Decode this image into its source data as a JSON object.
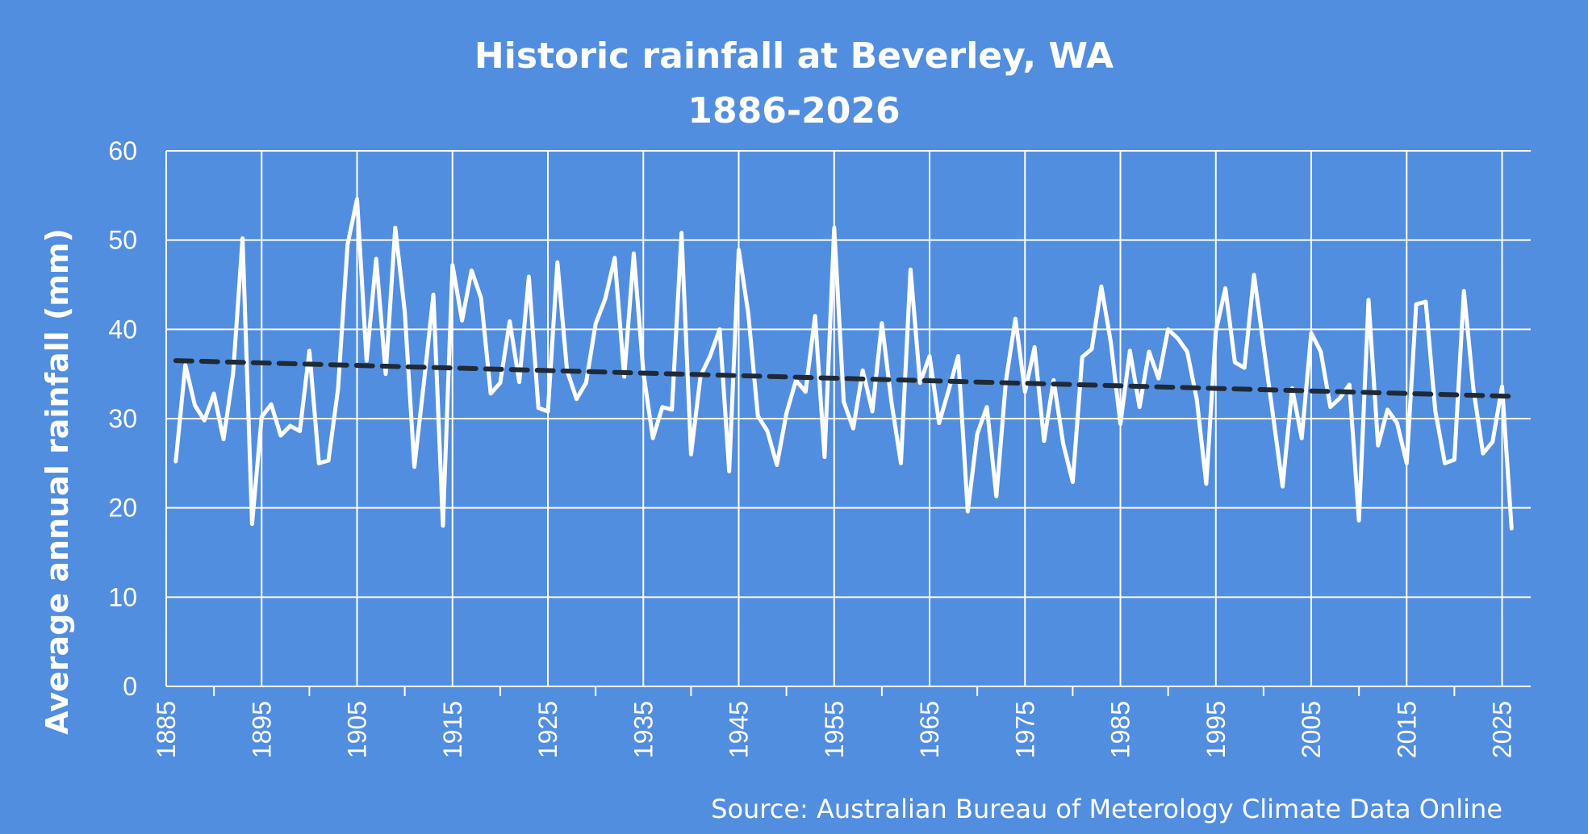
{
  "chart_data": {
    "type": "line",
    "title": "Historic rainfall at Beverley, WA",
    "subtitle": "1886-2026",
    "ylabel": "Average annual rainfall (mm)",
    "xlabel": "",
    "xlim": [
      1885,
      2028
    ],
    "ylim": [
      0,
      60
    ],
    "y_ticks": [
      0,
      10,
      20,
      30,
      40,
      50,
      60
    ],
    "x_ticks": [
      1885,
      1895,
      1905,
      1915,
      1925,
      1935,
      1945,
      1955,
      1965,
      1975,
      1985,
      1995,
      2005,
      2015,
      2025
    ],
    "grid": true,
    "legend": "none",
    "source": "Source: Australian Bureau of Meterology Climate Data Online",
    "colors": {
      "background": "#528ee0",
      "series": "#ffffff",
      "trend": "#1f2a36",
      "grid": "#ffffff"
    },
    "series": [
      {
        "x_start": 1886,
        "values": [
          25.2,
          36.0,
          31.5,
          29.8,
          32.8,
          27.7,
          35.0,
          50.2,
          18.2,
          30.2,
          31.6,
          28.1,
          29.2,
          28.6,
          37.6,
          25.0,
          25.3,
          33.3,
          49.5,
          54.6,
          36.5,
          47.9,
          35.0,
          51.4,
          42.0,
          24.6,
          34.0,
          43.9,
          18.0,
          47.2,
          41.0,
          46.6,
          43.5,
          32.8,
          34.0,
          40.9,
          34.1,
          45.9,
          31.2,
          30.8,
          47.5,
          35.4,
          32.2,
          34.0,
          40.6,
          43.4,
          48.0,
          34.7,
          48.5,
          35.2,
          27.8,
          31.3,
          31.0,
          50.8,
          26.0,
          34.8,
          37.0,
          40.0,
          24.1,
          48.9,
          41.8,
          30.3,
          28.6,
          24.8,
          30.6,
          34.3,
          33.0,
          41.5,
          25.7,
          51.4,
          31.9,
          28.9,
          35.4,
          30.8,
          40.7,
          31.9,
          25.0,
          46.7,
          34.0,
          37.0,
          29.5,
          33.2,
          37.0,
          19.6,
          28.3,
          31.3,
          21.3,
          34.2,
          41.2,
          33.0,
          38.0,
          27.5,
          34.3,
          27.2,
          22.9,
          36.9,
          37.8,
          44.8,
          38.5,
          29.4,
          37.6,
          31.3,
          37.5,
          34.5,
          40.0,
          39.0,
          37.5,
          32.2,
          22.7,
          39.8,
          44.6,
          36.3,
          35.7,
          46.1,
          38.2,
          30.3,
          22.4,
          33.4,
          27.8,
          39.6,
          37.5,
          31.3,
          32.3,
          33.8,
          18.6,
          43.3,
          27.0,
          31.0,
          29.5,
          25.0,
          42.8,
          43.1,
          30.9,
          25.0,
          25.4,
          44.3,
          33.3,
          26.1,
          27.4,
          33.6,
          17.7
        ]
      },
      {
        "name": "",
        "type": "trend",
        "x": [
          1886,
          2026
        ],
        "values": [
          36.5,
          32.5
        ]
      }
    ]
  }
}
